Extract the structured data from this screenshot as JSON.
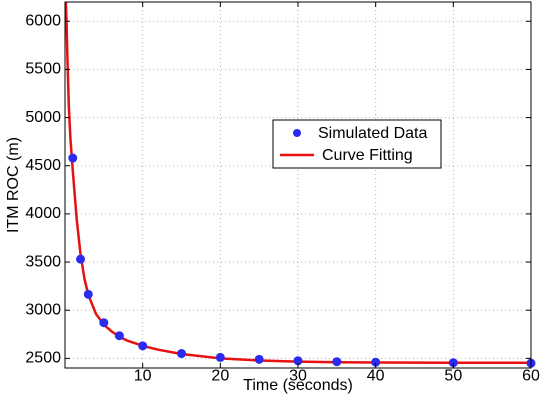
{
  "chart_data": {
    "type": "scatter",
    "xlabel": "Time (seconds)",
    "ylabel": "ITM ROC (m)",
    "xlim": [
      0,
      60
    ],
    "ylim": [
      2400,
      6200
    ],
    "xticks": [
      10,
      20,
      30,
      40,
      50,
      60
    ],
    "yticks": [
      2500,
      3000,
      3500,
      4000,
      4500,
      5000,
      5500,
      6000
    ],
    "grid": true,
    "legend_position": "center-right",
    "series": [
      {
        "name": "Simulated Data",
        "kind": "points",
        "color": "#2b2bf0",
        "x": [
          1,
          2,
          3,
          5,
          7,
          10,
          15,
          20,
          25,
          30,
          35,
          40,
          50,
          60
        ],
        "y": [
          4580,
          3530,
          3165,
          2870,
          2735,
          2630,
          2550,
          2510,
          2490,
          2475,
          2465,
          2460,
          2455,
          2450
        ]
      },
      {
        "name": "Curve Fitting",
        "kind": "line",
        "color": "#e81010",
        "x": [
          0.1,
          0.2,
          0.3,
          0.5,
          0.7,
          1,
          1.5,
          2,
          2.5,
          3,
          4,
          5,
          6,
          7,
          8,
          10,
          12,
          15,
          20,
          25,
          30,
          35,
          40,
          45,
          50,
          55,
          60
        ],
        "y": [
          6200,
          6000,
          5650,
          5100,
          4780,
          4450,
          3950,
          3580,
          3330,
          3160,
          2960,
          2850,
          2780,
          2725,
          2685,
          2630,
          2590,
          2545,
          2500,
          2478,
          2466,
          2460,
          2457,
          2456,
          2455,
          2455,
          2455
        ]
      }
    ]
  }
}
